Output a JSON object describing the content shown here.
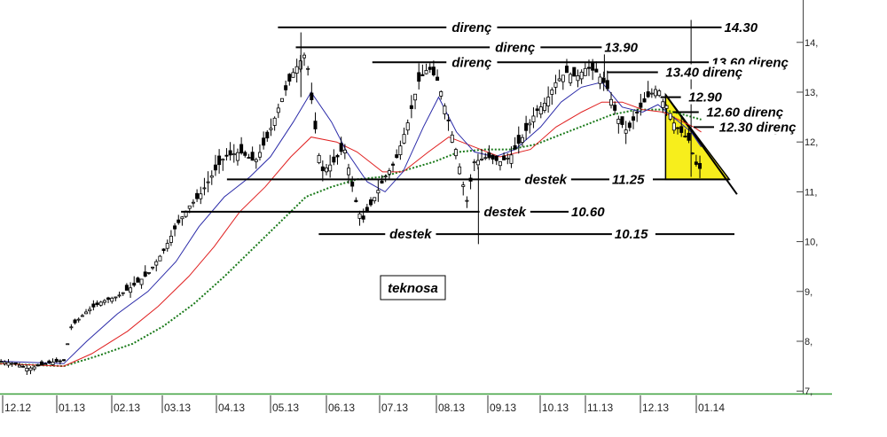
{
  "chart_data": {
    "type": "candlestick",
    "title": "teknosa",
    "x_ticks": [
      "12.12",
      "01.13",
      "02.13",
      "03.13",
      "04.13",
      "05.13",
      "06.13",
      "07.13",
      "08.13",
      "09.13",
      "10.13",
      "11.13",
      "12.13",
      "01.14"
    ],
    "y_ticks": [
      "14,",
      "13,",
      "12,",
      "11,",
      "10,",
      "9,",
      "8,",
      "7,"
    ],
    "y_tick_values": [
      14,
      13,
      12,
      11,
      10,
      9,
      8,
      7
    ],
    "ylim": [
      6.95,
      14.85
    ],
    "xlim": [
      0,
      15.6
    ],
    "colors": {
      "price": "#000000",
      "ma_short": "#2a2aa8",
      "ma_mid": "#e02020",
      "ma_long": "#1a7a1a",
      "triangle_fill": "#f7ee1c",
      "axis": "#3aa03a"
    },
    "price_path": [
      [
        0.0,
        7.6
      ],
      [
        0.3,
        7.55
      ],
      [
        0.55,
        7.45
      ],
      [
        0.8,
        7.52
      ],
      [
        1.0,
        7.58
      ],
      [
        1.25,
        7.6
      ],
      [
        1.4,
        8.3
      ],
      [
        1.7,
        8.6
      ],
      [
        2.0,
        8.8
      ],
      [
        2.3,
        8.9
      ],
      [
        2.6,
        9.1
      ],
      [
        2.9,
        9.35
      ],
      [
        3.2,
        9.8
      ],
      [
        3.45,
        10.3
      ],
      [
        3.7,
        10.7
      ],
      [
        3.9,
        10.9
      ],
      [
        4.2,
        11.4
      ],
      [
        4.4,
        11.7
      ],
      [
        4.7,
        11.8
      ],
      [
        5.0,
        11.6
      ],
      [
        5.25,
        12.1
      ],
      [
        5.5,
        12.8
      ],
      [
        5.75,
        13.4
      ],
      [
        6.0,
        13.8
      ],
      [
        6.15,
        12.5
      ],
      [
        6.3,
        11.4
      ],
      [
        6.55,
        11.6
      ],
      [
        6.75,
        11.9
      ],
      [
        6.95,
        10.9
      ],
      [
        7.1,
        10.4
      ],
      [
        7.35,
        10.9
      ],
      [
        7.55,
        11.3
      ],
      [
        7.75,
        11.6
      ],
      [
        8.0,
        12.4
      ],
      [
        8.2,
        13.2
      ],
      [
        8.4,
        13.5
      ],
      [
        8.6,
        13.2
      ],
      [
        8.8,
        12.4
      ],
      [
        8.95,
        11.8
      ],
      [
        9.15,
        10.8
      ],
      [
        9.3,
        11.6
      ],
      [
        9.55,
        11.7
      ],
      [
        9.8,
        11.6
      ],
      [
        10.0,
        11.7
      ],
      [
        10.25,
        12.1
      ],
      [
        10.5,
        12.6
      ],
      [
        10.7,
        12.8
      ],
      [
        10.9,
        13.2
      ],
      [
        11.1,
        13.4
      ],
      [
        11.3,
        13.3
      ],
      [
        11.5,
        13.5
      ],
      [
        11.7,
        13.4
      ],
      [
        11.9,
        13.1
      ],
      [
        12.1,
        12.5
      ],
      [
        12.3,
        12.2
      ],
      [
        12.5,
        12.6
      ],
      [
        12.7,
        12.9
      ],
      [
        12.9,
        13.1
      ],
      [
        13.0,
        12.8
      ],
      [
        13.1,
        12.7
      ],
      [
        13.2,
        12.4
      ],
      [
        13.35,
        12.2
      ],
      [
        13.5,
        12.05
      ],
      [
        13.6,
        11.7
      ],
      [
        13.7,
        11.4
      ],
      [
        13.75,
        11.55
      ]
    ],
    "ma_short_path": [
      [
        0.0,
        7.6
      ],
      [
        1.25,
        7.55
      ],
      [
        1.7,
        8.0
      ],
      [
        2.3,
        8.55
      ],
      [
        2.9,
        9.0
      ],
      [
        3.45,
        9.6
      ],
      [
        3.9,
        10.3
      ],
      [
        4.4,
        10.9
      ],
      [
        4.9,
        11.3
      ],
      [
        5.3,
        11.7
      ],
      [
        5.75,
        12.4
      ],
      [
        6.1,
        13.0
      ],
      [
        6.5,
        12.4
      ],
      [
        6.8,
        11.8
      ],
      [
        7.2,
        11.2
      ],
      [
        7.55,
        11.0
      ],
      [
        7.9,
        11.4
      ],
      [
        8.3,
        12.3
      ],
      [
        8.6,
        12.9
      ],
      [
        8.95,
        12.2
      ],
      [
        9.3,
        11.8
      ],
      [
        9.7,
        11.7
      ],
      [
        10.1,
        11.85
      ],
      [
        10.6,
        12.3
      ],
      [
        11.0,
        12.8
      ],
      [
        11.4,
        13.1
      ],
      [
        11.8,
        13.2
      ],
      [
        12.2,
        12.7
      ],
      [
        12.6,
        12.6
      ],
      [
        12.9,
        12.75
      ],
      [
        13.2,
        12.5
      ],
      [
        13.55,
        12.2
      ],
      [
        13.75,
        11.9
      ]
    ],
    "ma_mid_path": [
      [
        0.0,
        7.55
      ],
      [
        1.25,
        7.5
      ],
      [
        1.8,
        7.75
      ],
      [
        2.5,
        8.2
      ],
      [
        3.1,
        8.7
      ],
      [
        3.7,
        9.3
      ],
      [
        4.2,
        9.9
      ],
      [
        4.7,
        10.6
      ],
      [
        5.2,
        11.1
      ],
      [
        5.7,
        11.7
      ],
      [
        6.1,
        12.1
      ],
      [
        6.6,
        12.0
      ],
      [
        7.0,
        11.8
      ],
      [
        7.5,
        11.4
      ],
      [
        7.9,
        11.4
      ],
      [
        8.4,
        11.8
      ],
      [
        8.8,
        12.1
      ],
      [
        9.3,
        11.9
      ],
      [
        9.8,
        11.7
      ],
      [
        10.4,
        11.85
      ],
      [
        10.9,
        12.3
      ],
      [
        11.4,
        12.6
      ],
      [
        11.8,
        12.8
      ],
      [
        12.2,
        12.8
      ],
      [
        12.6,
        12.65
      ],
      [
        13.0,
        12.6
      ],
      [
        13.3,
        12.45
      ],
      [
        13.6,
        12.3
      ],
      [
        13.75,
        12.2
      ]
    ],
    "ma_long_path": [
      [
        0.0,
        7.55
      ],
      [
        1.25,
        7.5
      ],
      [
        1.9,
        7.7
      ],
      [
        2.6,
        7.95
      ],
      [
        3.2,
        8.3
      ],
      [
        3.8,
        8.75
      ],
      [
        4.4,
        9.3
      ],
      [
        5.0,
        9.9
      ],
      [
        5.5,
        10.4
      ],
      [
        6.0,
        10.9
      ],
      [
        6.5,
        11.1
      ],
      [
        7.0,
        11.25
      ],
      [
        7.5,
        11.3
      ],
      [
        8.0,
        11.45
      ],
      [
        8.5,
        11.6
      ],
      [
        9.0,
        11.8
      ],
      [
        9.5,
        11.85
      ],
      [
        10.0,
        11.85
      ],
      [
        10.5,
        11.95
      ],
      [
        11.0,
        12.15
      ],
      [
        11.5,
        12.35
      ],
      [
        12.0,
        12.55
      ],
      [
        12.5,
        12.65
      ],
      [
        13.0,
        12.65
      ],
      [
        13.4,
        12.55
      ],
      [
        13.75,
        12.45
      ]
    ],
    "levels": [
      {
        "kind": "direnç",
        "value": "14.30",
        "y": 14.3,
        "x0": 5.45,
        "x1": 14.85,
        "label_x": 9.25,
        "value_x": 14.2,
        "label_anchor": "middle"
      },
      {
        "kind": "direnç",
        "value": "13.90",
        "y": 13.9,
        "x0": 5.8,
        "x1": 12.3,
        "label_x": 10.1,
        "value_x": 11.85,
        "label_anchor": "middle"
      },
      {
        "kind": "direnç",
        "value": "13.60",
        "y": 13.6,
        "x0": 7.3,
        "x1": 13.95,
        "label_x": 9.25,
        "value_x": 13.95,
        "label_anchor": "middle",
        "suffix": "direnç"
      },
      {
        "kind": "direnç",
        "value": "13.40",
        "y": 13.4,
        "x0": 11.9,
        "x1": 12.9,
        "label_x": 14.05,
        "value_x": 13.05,
        "label_anchor": "start",
        "suffix_only": true
      },
      {
        "kind": "",
        "value": "12.90",
        "y": 12.9,
        "x0": 12.95,
        "x1": 13.35,
        "value_x": 13.5
      },
      {
        "kind": "direnç",
        "value": "12.60",
        "y": 12.6,
        "x0": 13.2,
        "x1": 13.7,
        "label_x": 14.65,
        "value_x": 13.85,
        "suffix": "direnç"
      },
      {
        "kind": "direnç",
        "value": "12.30",
        "y": 12.3,
        "x0": 13.6,
        "x1": 14.0,
        "label_x": 14.9,
        "value_x": 14.1,
        "suffix": "direnç"
      },
      {
        "kind": "destek",
        "value": "11.25",
        "y": 11.25,
        "x0": 4.45,
        "x1": 14.3,
        "label_x": 10.7,
        "value_x": 12.0,
        "label_anchor": "middle"
      },
      {
        "kind": "destek",
        "value": "10.60",
        "y": 10.6,
        "x0": 3.55,
        "x1": 11.15,
        "label_x": 9.9,
        "value_x": 11.2,
        "label_anchor": "middle"
      },
      {
        "kind": "destek",
        "value": "10.15",
        "y": 10.15,
        "x0": 6.25,
        "x1": 14.4,
        "label_x": 8.05,
        "value_x": 12.05,
        "label_anchor": "middle"
      }
    ],
    "triangle": {
      "top_x": 13.05,
      "top_y": 12.95,
      "bottom_left_x": 13.05,
      "bottom_right_x": 14.3,
      "bottom_y": 11.25,
      "trend_end_x": 14.45,
      "trend_end_y": 10.95
    }
  }
}
